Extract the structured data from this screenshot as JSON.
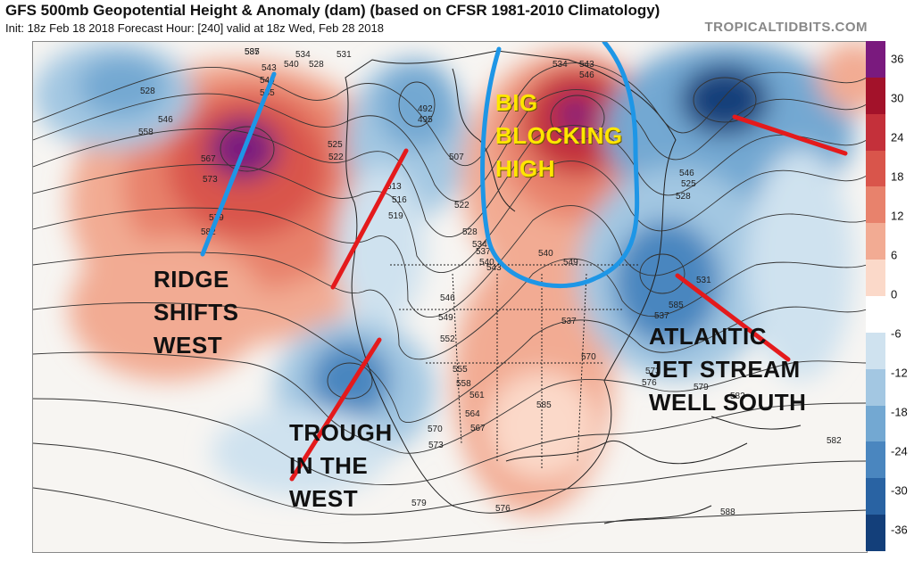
{
  "header": {
    "title": "GFS 500mb Geopotential Height & Anomaly (dam) (based on CFSR 1981-2010 Climatology)",
    "subtitle": "Init: 18z Feb 18 2018   Forecast Hour: [240]   valid at 18z Wed, Feb 28 2018",
    "watermark": "TROPICALTIDBITS.COM"
  },
  "annotations": {
    "ridge": "RIDGE\nSHIFTS\nWEST",
    "trough": "TROUGH\nIN THE\nWEST",
    "blocking": "BIG\nBLOCKING\nHIGH",
    "atlantic": "ATLANTIC\nJET STREAM\nWELL SOUTH"
  },
  "colorbar": {
    "labels": [
      "36",
      "30",
      "24",
      "18",
      "12",
      "6",
      "0",
      "-6",
      "-12",
      "-18",
      "-24",
      "-30",
      "-36"
    ],
    "colors": [
      "#7a1a7e",
      "#a3122a",
      "#c4303a",
      "#d9554b",
      "#e8826c",
      "#f2ab93",
      "#fbd9c9",
      "#ffffff",
      "#cfe2ef",
      "#a3c7e2",
      "#73a8d2",
      "#4a86bf",
      "#2963a3",
      "#133f7a"
    ]
  },
  "contour_labels": [
    "537",
    "543",
    "549",
    "534",
    "528",
    "531",
    "528",
    "546",
    "558",
    "540",
    "555",
    "567",
    "573",
    "579",
    "582",
    "525",
    "522",
    "516",
    "519",
    "513",
    "492",
    "495",
    "507",
    "522",
    "528",
    "534",
    "537",
    "540",
    "543",
    "546",
    "549",
    "552",
    "555",
    "558",
    "561",
    "564",
    "567",
    "570",
    "573",
    "576",
    "579",
    "585",
    "588",
    "582",
    "585",
    "537",
    "546",
    "525",
    "528",
    "531",
    "534",
    "543",
    "546",
    "549",
    "540",
    "537",
    "570",
    "573",
    "576",
    "579",
    "582",
    "585"
  ],
  "colors": {
    "annotation_line_red": "#e41a1c",
    "annotation_line_blue": "#1e96e6",
    "annotation_text_yellow": "#ffe600"
  }
}
